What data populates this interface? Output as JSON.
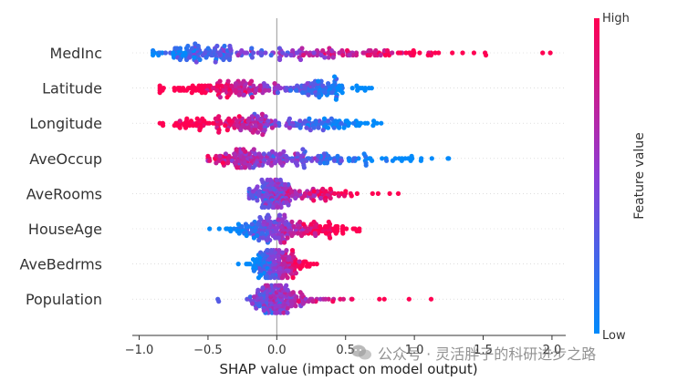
{
  "chart_data": {
    "type": "scatter",
    "subtype": "shap-beeswarm-summary",
    "features": [
      {
        "name": "MedInc",
        "min_shap": -0.9,
        "max_shap": 2.0,
        "high_value_side": "positive",
        "clusters": [
          {
            "center": -0.55,
            "spread": 0.18,
            "weight": 0.5
          },
          {
            "center": 0.2,
            "spread": 0.25,
            "weight": 0.35
          },
          {
            "center": 0.9,
            "spread": 0.4,
            "weight": 0.15
          }
        ]
      },
      {
        "name": "Latitude",
        "min_shap": -0.85,
        "max_shap": 0.75,
        "high_value_side": "negative",
        "clusters": [
          {
            "center": -0.45,
            "spread": 0.22,
            "weight": 0.4
          },
          {
            "center": 0.3,
            "spread": 0.12,
            "weight": 0.45
          },
          {
            "center": -0.1,
            "spread": 0.15,
            "weight": 0.15
          }
        ]
      },
      {
        "name": "Longitude",
        "min_shap": -0.85,
        "max_shap": 0.85,
        "high_value_side": "negative",
        "clusters": [
          {
            "center": -0.5,
            "spread": 0.18,
            "weight": 0.35
          },
          {
            "center": -0.15,
            "spread": 0.08,
            "weight": 0.35
          },
          {
            "center": 0.3,
            "spread": 0.2,
            "weight": 0.3
          }
        ]
      },
      {
        "name": "AveOccup",
        "min_shap": -0.5,
        "max_shap": 1.25,
        "high_value_side": "negative",
        "clusters": [
          {
            "center": -0.2,
            "spread": 0.15,
            "weight": 0.6
          },
          {
            "center": 0.25,
            "spread": 0.2,
            "weight": 0.3
          },
          {
            "center": 0.8,
            "spread": 0.25,
            "weight": 0.1
          }
        ]
      },
      {
        "name": "AveRooms",
        "min_shap": -0.2,
        "max_shap": 0.9,
        "high_value_side": "positive",
        "clusters": [
          {
            "center": -0.05,
            "spread": 0.08,
            "weight": 0.7
          },
          {
            "center": 0.3,
            "spread": 0.15,
            "weight": 0.3
          }
        ]
      },
      {
        "name": "HouseAge",
        "min_shap": -0.5,
        "max_shap": 0.6,
        "high_value_side": "positive",
        "clusters": [
          {
            "center": -0.05,
            "spread": 0.12,
            "weight": 0.7
          },
          {
            "center": 0.3,
            "spread": 0.15,
            "weight": 0.3
          }
        ]
      },
      {
        "name": "AveBedrms",
        "min_shap": -0.3,
        "max_shap": 0.3,
        "high_value_side": "positive",
        "clusters": [
          {
            "center": 0.0,
            "spread": 0.09,
            "weight": 1.0
          }
        ]
      },
      {
        "name": "Population",
        "min_shap": -0.45,
        "max_shap": 1.2,
        "high_value_side": "positive",
        "clusters": [
          {
            "center": -0.02,
            "spread": 0.07,
            "weight": 0.85
          },
          {
            "center": 0.25,
            "spread": 0.12,
            "weight": 0.15
          }
        ]
      }
    ],
    "xlabel": "SHAP value (impact on model output)",
    "xlim": [
      -1.05,
      2.1
    ],
    "xticks": [
      -1.0,
      -0.5,
      0.0,
      0.5,
      1.0,
      1.5,
      2.0
    ],
    "xtick_labels": [
      "−1.0",
      "−0.5",
      "0.0",
      "0.5",
      "1.0",
      "1.5",
      "2.0"
    ],
    "zero_line": 0.0,
    "colorbar": {
      "label": "Feature value",
      "high_label": "High",
      "low_label": "Low",
      "low_color": "#008afb",
      "high_color": "#ff0052"
    },
    "grid": false
  },
  "watermark": {
    "text": "公众号 · 灵活胖子的科研进步之路"
  }
}
